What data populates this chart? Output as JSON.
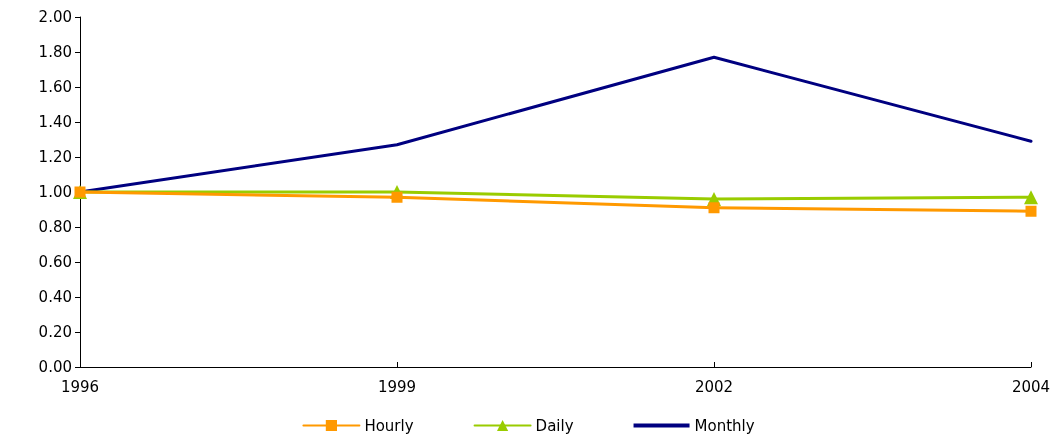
{
  "chart_data": {
    "type": "line",
    "categories": [
      "1996",
      "1999",
      "2002",
      "2004"
    ],
    "series": [
      {
        "name": "Hourly",
        "color": "#ff9900",
        "marker": "square",
        "values": [
          1.0,
          0.97,
          0.91,
          0.89
        ]
      },
      {
        "name": "Daily",
        "color": "#99cc00",
        "marker": "triangle",
        "values": [
          1.0,
          1.0,
          0.96,
          0.97
        ]
      },
      {
        "name": "Monthly",
        "color": "#000080",
        "marker": "none",
        "values": [
          1.0,
          1.27,
          1.77,
          1.29
        ]
      }
    ],
    "ylim": [
      0,
      2
    ],
    "yticks": [
      {
        "value": 0,
        "label": "0.00"
      },
      {
        "value": 0.2,
        "label": "0.20"
      },
      {
        "value": 0.4,
        "label": "0.40"
      },
      {
        "value": 0.6,
        "label": "0.60"
      },
      {
        "value": 0.8,
        "label": "0.80"
      },
      {
        "value": 1,
        "label": "1.00"
      },
      {
        "value": 1.2,
        "label": "1.20"
      },
      {
        "value": 1.4,
        "label": "1.40"
      },
      {
        "value": 1.6,
        "label": "1.60"
      },
      {
        "value": 1.8,
        "label": "1.80"
      },
      {
        "value": 2,
        "label": "2.00"
      }
    ],
    "grid": false,
    "legend": "bottom",
    "line_style": "solid"
  }
}
